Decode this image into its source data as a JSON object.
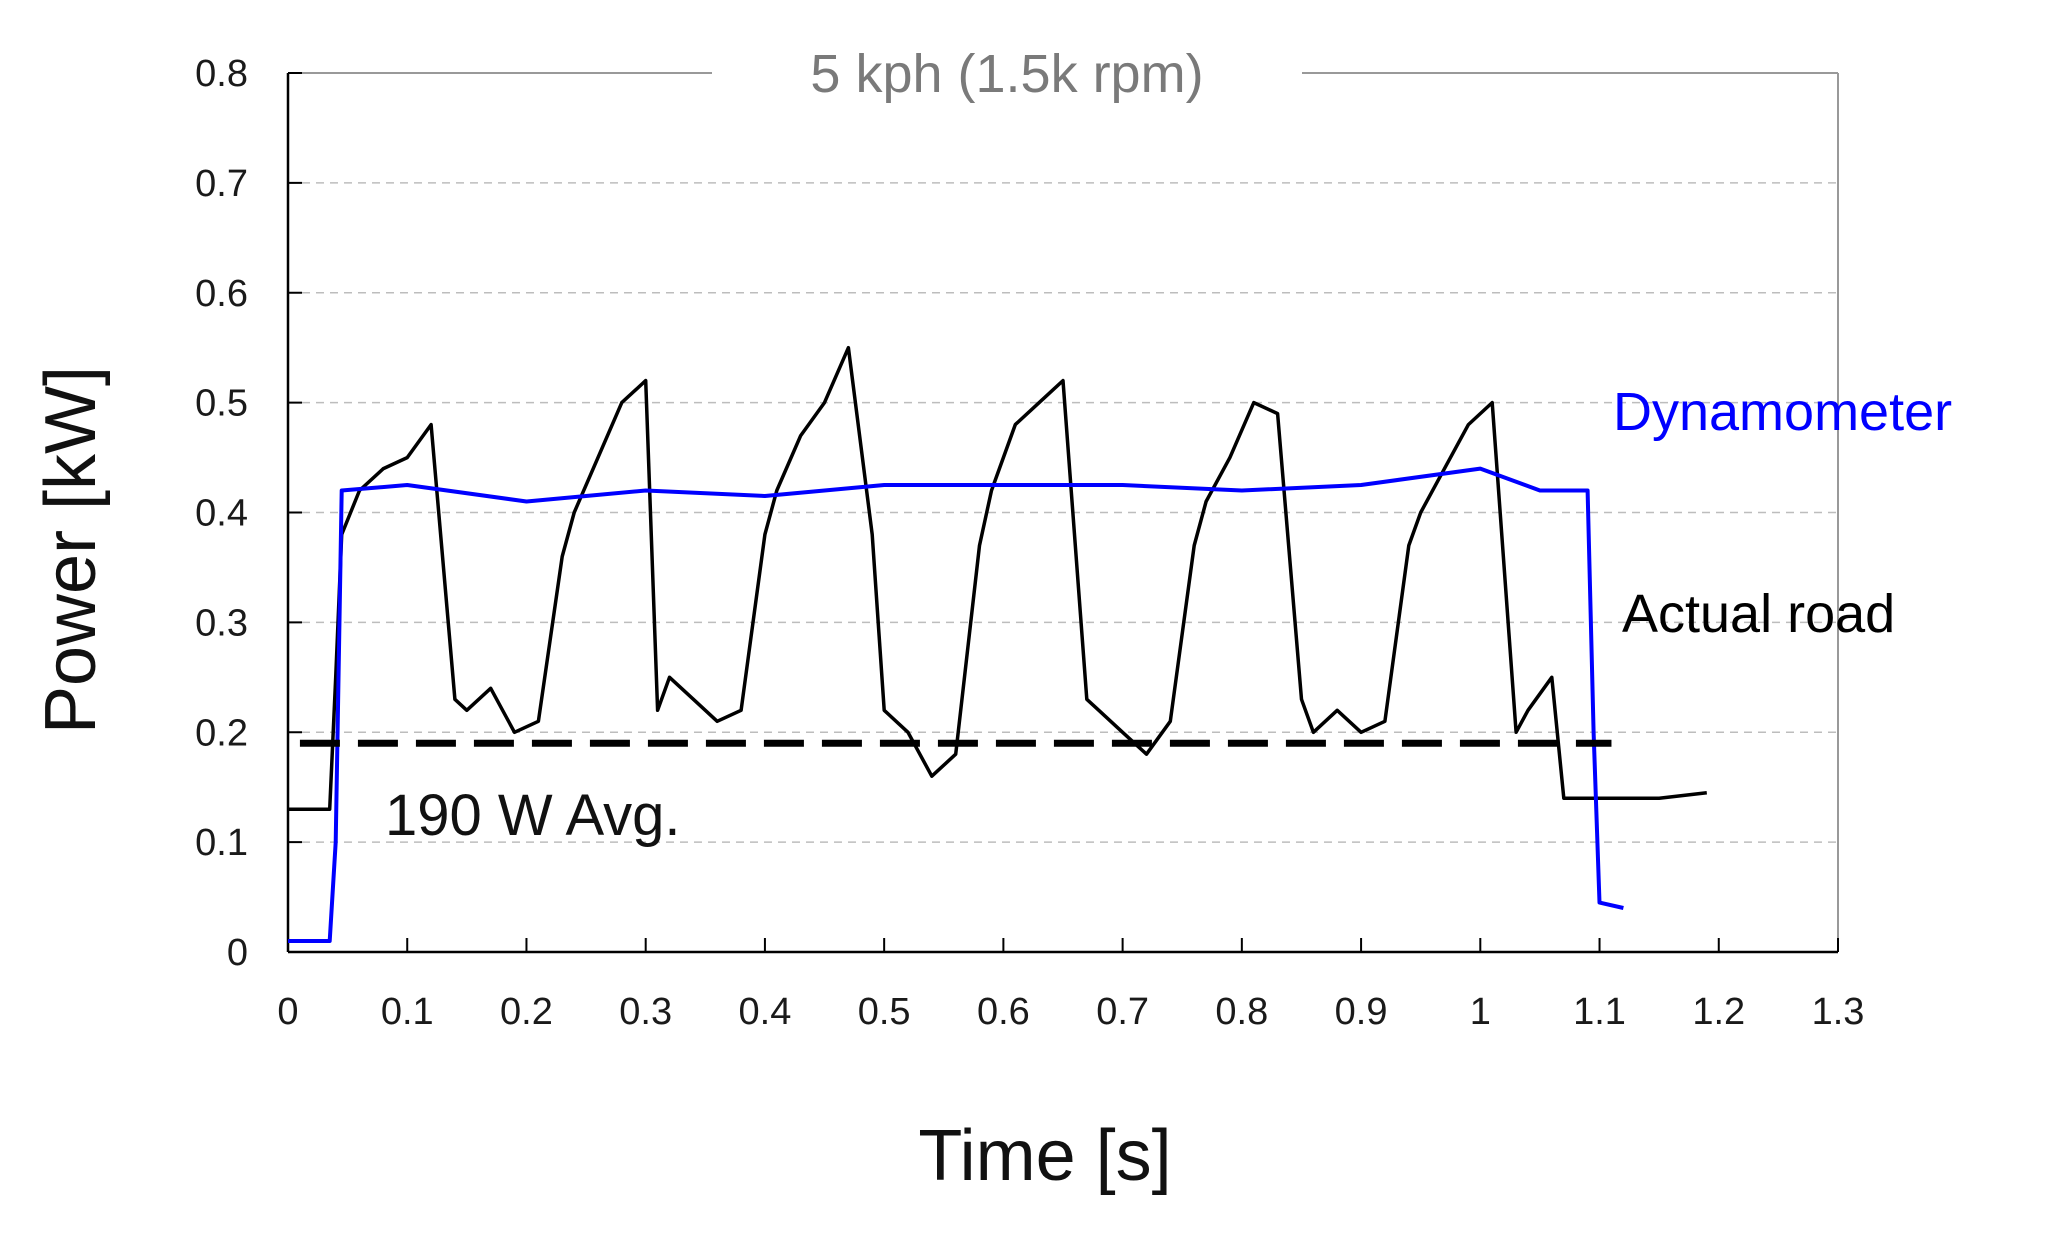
{
  "chart_data": {
    "type": "line",
    "title": "5 kph (1.5k rpm)",
    "xlabel": "Time [s]",
    "ylabel": "Power [kW]",
    "xlim": [
      0,
      1.3
    ],
    "ylim": [
      0,
      0.8
    ],
    "xticks": [
      "0",
      "0.1",
      "0.2",
      "0.3",
      "0.4",
      "0.5",
      "0.6",
      "0.7",
      "0.8",
      "0.9",
      "1",
      "1.1",
      "1.2",
      "1.3"
    ],
    "yticks": [
      "0",
      "0.1",
      "0.2",
      "0.3",
      "0.4",
      "0.5",
      "0.6",
      "0.7",
      "0.8"
    ],
    "grid": "horizontal-dashed",
    "reference_line": {
      "label": "190 W Avg.",
      "y": 0.19,
      "x_range": [
        0.01,
        1.11
      ],
      "color": "#000000"
    },
    "series": [
      {
        "name": "Actual road",
        "color": "#000000",
        "x": [
          0,
          0.035,
          0.04,
          0.045,
          0.06,
          0.08,
          0.1,
          0.12,
          0.14,
          0.15,
          0.17,
          0.19,
          0.21,
          0.23,
          0.24,
          0.26,
          0.28,
          0.3,
          0.31,
          0.32,
          0.34,
          0.36,
          0.38,
          0.4,
          0.41,
          0.43,
          0.45,
          0.47,
          0.49,
          0.5,
          0.52,
          0.54,
          0.56,
          0.58,
          0.59,
          0.61,
          0.63,
          0.65,
          0.67,
          0.68,
          0.7,
          0.72,
          0.74,
          0.76,
          0.77,
          0.79,
          0.81,
          0.83,
          0.85,
          0.86,
          0.88,
          0.9,
          0.92,
          0.94,
          0.95,
          0.97,
          0.99,
          1.01,
          1.03,
          1.04,
          1.06,
          1.07,
          1.09,
          1.1,
          1.12,
          1.15,
          1.19
        ],
        "y": [
          0.13,
          0.13,
          0.25,
          0.38,
          0.42,
          0.44,
          0.45,
          0.48,
          0.23,
          0.22,
          0.24,
          0.2,
          0.21,
          0.36,
          0.4,
          0.45,
          0.5,
          0.52,
          0.22,
          0.25,
          0.23,
          0.21,
          0.22,
          0.38,
          0.42,
          0.47,
          0.5,
          0.55,
          0.38,
          0.22,
          0.2,
          0.16,
          0.18,
          0.37,
          0.42,
          0.48,
          0.5,
          0.52,
          0.23,
          0.22,
          0.2,
          0.18,
          0.21,
          0.37,
          0.41,
          0.45,
          0.5,
          0.49,
          0.23,
          0.2,
          0.22,
          0.2,
          0.21,
          0.37,
          0.4,
          0.44,
          0.48,
          0.5,
          0.2,
          0.22,
          0.25,
          0.14,
          0.14,
          0.14,
          0.14,
          0.14,
          0.145
        ]
      },
      {
        "name": "Dynamometer",
        "color": "#0000ff",
        "x": [
          0,
          0.035,
          0.04,
          0.045,
          0.1,
          0.2,
          0.3,
          0.4,
          0.5,
          0.6,
          0.7,
          0.8,
          0.9,
          1.0,
          1.05,
          1.09,
          1.095,
          1.1,
          1.12
        ],
        "y": [
          0.01,
          0.01,
          0.1,
          0.42,
          0.425,
          0.41,
          0.42,
          0.415,
          0.425,
          0.425,
          0.425,
          0.42,
          0.425,
          0.44,
          0.42,
          0.42,
          0.2,
          0.045,
          0.04
        ]
      }
    ]
  }
}
